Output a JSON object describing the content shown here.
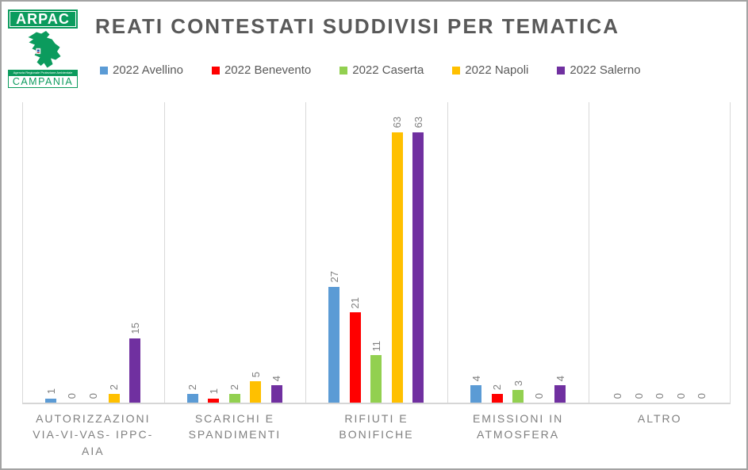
{
  "logo": {
    "brand": "ARPAC",
    "subtext": "Agenzia Regionale Protezione Ambientale",
    "region": "CAMPANIA",
    "color": "#0b9b5d"
  },
  "chart_data": {
    "type": "bar",
    "title": "REATI CONTESTATI SUDDIVISI PER TEMATICA",
    "categories": [
      "AUTORIZZAZIONI\nVIA-VI-VAS- IPPC-\nAIA",
      "SCARICHI E\nSPANDIMENTI",
      "RIFIUTI E\nBONIFICHE",
      "EMISSIONI IN\nATMOSFERA",
      "ALTRO"
    ],
    "series": [
      {
        "name": "2022 Avellino",
        "color": "#5B9BD5",
        "values": [
          1,
          2,
          27,
          4,
          0
        ]
      },
      {
        "name": "2022 Benevento",
        "color": "#FF0000",
        "values": [
          0,
          1,
          21,
          2,
          0
        ]
      },
      {
        "name": "2022 Caserta",
        "color": "#92D050",
        "values": [
          0,
          2,
          11,
          3,
          0
        ]
      },
      {
        "name": "2022 Napoli",
        "color": "#FFC000",
        "values": [
          2,
          5,
          63,
          0,
          0
        ]
      },
      {
        "name": "2022 Salerno",
        "color": "#7030A0",
        "values": [
          15,
          4,
          63,
          4,
          0
        ]
      }
    ],
    "ylim": [
      0,
      70
    ],
    "grid": "vertical category separators only",
    "legend_position": "top",
    "data_labels": "values rotated 90° above each bar",
    "text_colors": {
      "title": "#595959",
      "legend": "#595959",
      "labels": "#7f7f7f"
    }
  }
}
